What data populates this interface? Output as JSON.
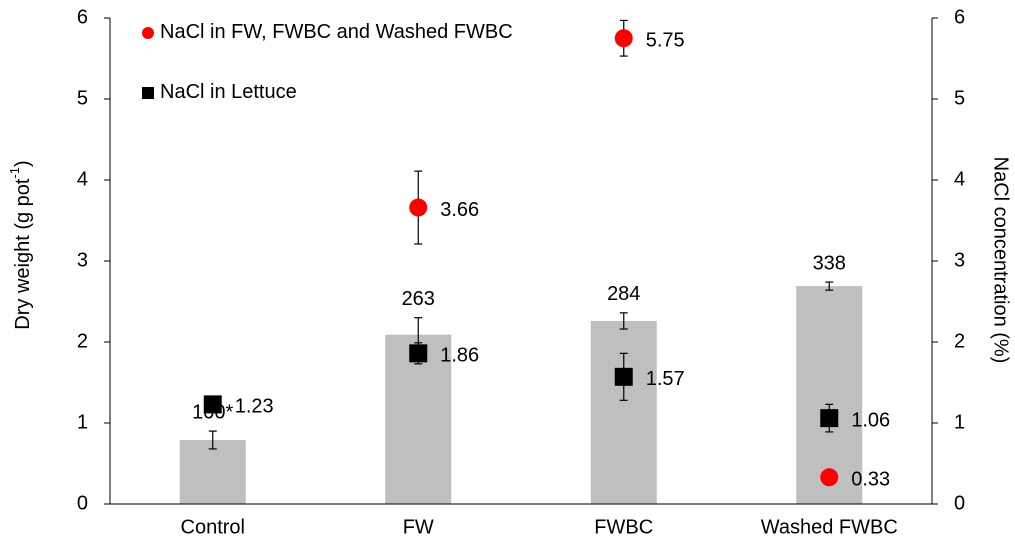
{
  "chart_data": {
    "type": "bar",
    "categories": [
      "Control",
      "FW",
      "FWBC",
      "Washed FWBC"
    ],
    "values": [
      0.79,
      2.09,
      2.26,
      2.69
    ],
    "errors": [
      0.11,
      0.21,
      0.1,
      0.05
    ],
    "color": "#bfbfbf",
    "bar_labels": [
      "100*",
      "263",
      "284",
      "338"
    ],
    "y_label_parts": [
      "Dry weight (g pot",
      "-1",
      ")"
    ],
    "y2_label": "NaCl concentration (%)",
    "ylim": [
      0,
      6
    ],
    "yticks": [
      0,
      1,
      2,
      3,
      4,
      5,
      6
    ],
    "y2lim": [
      0,
      6
    ],
    "y2ticks": [
      0,
      1,
      2,
      3,
      4,
      5,
      6
    ],
    "legend": "top-left",
    "series": [
      {
        "name": "NaCl in FW, FWBC and Washed FWBC",
        "marker": "circle",
        "color": "#ff0000",
        "axis": "y2",
        "values": [
          null,
          3.66,
          5.75,
          0.33
        ],
        "errors": [
          null,
          0.45,
          0.22,
          null
        ]
      },
      {
        "name": "NaCl in Lettuce",
        "marker": "square",
        "color": "#000000",
        "axis": "y2",
        "values": [
          1.23,
          1.86,
          1.57,
          1.06
        ],
        "errors": [
          null,
          0.13,
          0.29,
          0.17
        ]
      }
    ]
  }
}
